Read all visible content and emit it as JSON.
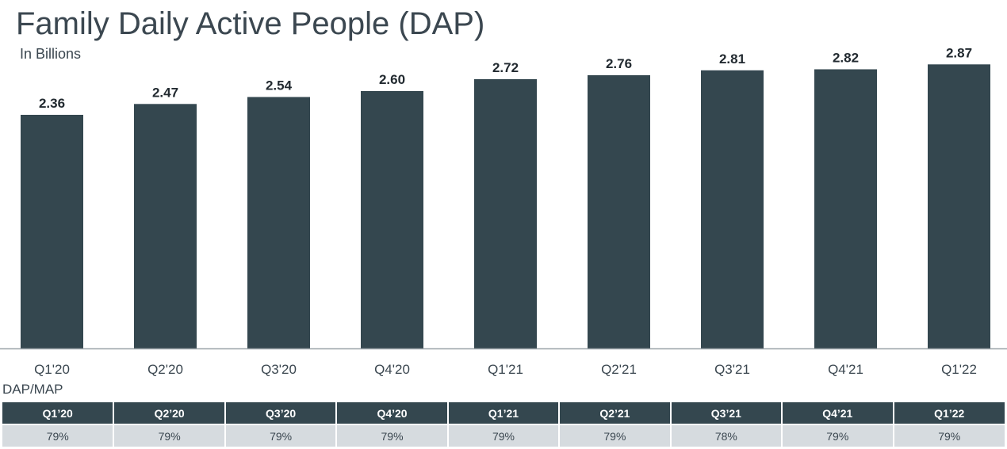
{
  "header": {
    "title": "Family Daily Active People (DAP)",
    "subtitle": "In Billions"
  },
  "colors": {
    "bar": "#34474f",
    "axis": "#9aa3a8",
    "header_bg": "#34474f",
    "row_bg": "#d6dbdf"
  },
  "chart_data": {
    "type": "bar",
    "title": "Family Daily Active People (DAP)",
    "subtitle": "In Billions",
    "categories": [
      "Q1'20",
      "Q2'20",
      "Q3'20",
      "Q4'20",
      "Q1'21",
      "Q2'21",
      "Q3'21",
      "Q4'21",
      "Q1'22"
    ],
    "values": [
      2.36,
      2.47,
      2.54,
      2.6,
      2.72,
      2.76,
      2.81,
      2.82,
      2.87
    ],
    "value_labels": [
      "2.36",
      "2.47",
      "2.54",
      "2.60",
      "2.72",
      "2.76",
      "2.81",
      "2.82",
      "2.87"
    ],
    "xlabel": "",
    "ylabel": "",
    "ylim": [
      0,
      3.2
    ],
    "grid": false,
    "legend": "none"
  },
  "table": {
    "title": "DAP/MAP",
    "headers": [
      "Q1’20",
      "Q2’20",
      "Q3’20",
      "Q4’20",
      "Q1’21",
      "Q2’21",
      "Q3’21",
      "Q4’21",
      "Q1’22"
    ],
    "values": [
      "79%",
      "79%",
      "79%",
      "79%",
      "79%",
      "79%",
      "78%",
      "79%",
      "79%"
    ]
  }
}
